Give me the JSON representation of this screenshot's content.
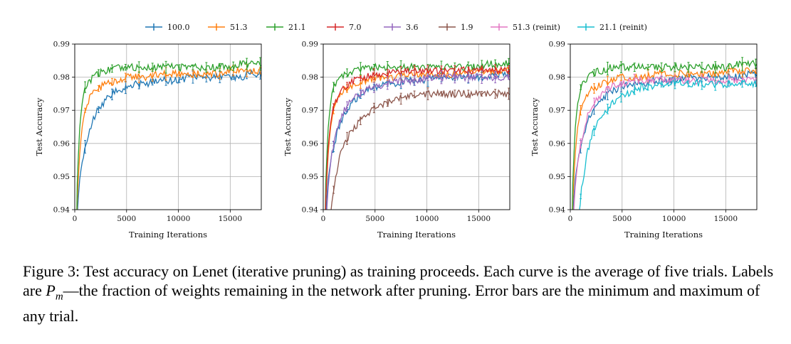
{
  "chart_data": {
    "type": "line",
    "legend": {
      "placement": "top",
      "entries": [
        {
          "label": "100.0",
          "color": "#1f77b4"
        },
        {
          "label": "51.3",
          "color": "#ff7f0e"
        },
        {
          "label": "21.1",
          "color": "#2ca02c"
        },
        {
          "label": "7.0",
          "color": "#d62728"
        },
        {
          "label": "3.6",
          "color": "#9467bd"
        },
        {
          "label": "1.9",
          "color": "#8c564b"
        },
        {
          "label": "51.3 (reinit)",
          "color": "#e377c2"
        },
        {
          "label": "21.1 (reinit)",
          "color": "#17becf"
        }
      ]
    },
    "shared": {
      "xlabel": "Training Iterations",
      "ylabel": "Test Accuracy",
      "xlim": [
        0,
        18000
      ],
      "ylim": [
        0.94,
        0.99
      ],
      "xticks": [
        0,
        5000,
        10000,
        15000
      ],
      "xtick_labels": [
        "0",
        "5000",
        "10000",
        "15000"
      ],
      "yticks": [
        0.94,
        0.95,
        0.96,
        0.97,
        0.98,
        0.99
      ],
      "ytick_labels": [
        "0.94",
        "0.95",
        "0.96",
        "0.97",
        "0.98",
        "0.99"
      ],
      "grid": true
    },
    "panels": [
      {
        "series": [
          {
            "label": "100.0",
            "color": "#1f77b4",
            "x": [
              0,
              250,
              500,
              750,
              1000,
              1500,
              2000,
              3000,
              4000,
              5000,
              6000,
              7000,
              8000,
              9000,
              10000,
              11000,
              12000,
              13000,
              14000,
              15000,
              16000,
              17000,
              18000
            ],
            "y": [
              0.9,
              0.94,
              0.95,
              0.955,
              0.959,
              0.965,
              0.969,
              0.973,
              0.976,
              0.977,
              0.978,
              0.978,
              0.979,
              0.979,
              0.979,
              0.98,
              0.98,
              0.98,
              0.98,
              0.98,
              0.98,
              0.981,
              0.981
            ]
          },
          {
            "label": "51.3",
            "color": "#ff7f0e",
            "x": [
              0,
              250,
              500,
              750,
              1000,
              1500,
              2000,
              3000,
              4000,
              5000,
              6000,
              7000,
              8000,
              9000,
              10000,
              11000,
              12000,
              13000,
              14000,
              15000,
              16000,
              17000,
              18000
            ],
            "y": [
              0.9,
              0.944,
              0.958,
              0.966,
              0.97,
              0.974,
              0.976,
              0.978,
              0.979,
              0.98,
              0.98,
              0.98,
              0.981,
              0.981,
              0.981,
              0.981,
              0.981,
              0.981,
              0.981,
              0.982,
              0.982,
              0.982,
              0.982
            ]
          },
          {
            "label": "21.1",
            "color": "#2ca02c",
            "x": [
              0,
              250,
              500,
              750,
              1000,
              1500,
              2000,
              3000,
              4000,
              5000,
              6000,
              7000,
              8000,
              9000,
              10000,
              11000,
              12000,
              13000,
              14000,
              15000,
              16000,
              17000,
              18000
            ],
            "y": [
              0.9,
              0.95,
              0.966,
              0.973,
              0.977,
              0.979,
              0.981,
              0.982,
              0.983,
              0.983,
              0.983,
              0.983,
              0.983,
              0.983,
              0.983,
              0.983,
              0.983,
              0.983,
              0.983,
              0.983,
              0.984,
              0.984,
              0.984
            ]
          }
        ]
      },
      {
        "series": [
          {
            "label": "100.0",
            "color": "#1f77b4",
            "x": [
              0,
              250,
              500,
              750,
              1000,
              1500,
              2000,
              3000,
              4000,
              5000,
              6000,
              7000,
              8000,
              9000,
              10000,
              11000,
              12000,
              13000,
              14000,
              15000,
              16000,
              17000,
              18000
            ],
            "y": [
              0.9,
              0.94,
              0.95,
              0.955,
              0.959,
              0.965,
              0.969,
              0.973,
              0.976,
              0.977,
              0.978,
              0.978,
              0.979,
              0.979,
              0.979,
              0.98,
              0.98,
              0.98,
              0.98,
              0.98,
              0.98,
              0.981,
              0.981
            ]
          },
          {
            "label": "51.3",
            "color": "#ff7f0e",
            "x": [
              0,
              250,
              500,
              750,
              1000,
              1500,
              2000,
              3000,
              4000,
              5000,
              6000,
              7000,
              8000,
              9000,
              10000,
              11000,
              12000,
              13000,
              14000,
              15000,
              16000,
              17000,
              18000
            ],
            "y": [
              0.9,
              0.944,
              0.958,
              0.966,
              0.97,
              0.974,
              0.976,
              0.978,
              0.979,
              0.98,
              0.98,
              0.98,
              0.981,
              0.981,
              0.981,
              0.981,
              0.981,
              0.981,
              0.981,
              0.982,
              0.982,
              0.982,
              0.982
            ]
          },
          {
            "label": "21.1",
            "color": "#2ca02c",
            "x": [
              0,
              250,
              500,
              750,
              1000,
              1500,
              2000,
              3000,
              4000,
              5000,
              6000,
              7000,
              8000,
              9000,
              10000,
              11000,
              12000,
              13000,
              14000,
              15000,
              16000,
              17000,
              18000
            ],
            "y": [
              0.9,
              0.95,
              0.966,
              0.973,
              0.977,
              0.979,
              0.981,
              0.982,
              0.983,
              0.983,
              0.983,
              0.983,
              0.983,
              0.983,
              0.983,
              0.983,
              0.983,
              0.983,
              0.983,
              0.983,
              0.984,
              0.984,
              0.984
            ]
          },
          {
            "label": "7.0",
            "color": "#d62728",
            "x": [
              0,
              250,
              500,
              750,
              1000,
              1500,
              2000,
              3000,
              4000,
              5000,
              6000,
              7000,
              8000,
              9000,
              10000,
              11000,
              12000,
              13000,
              14000,
              15000,
              16000,
              17000,
              18000
            ],
            "y": [
              0.9,
              0.945,
              0.96,
              0.967,
              0.971,
              0.975,
              0.977,
              0.979,
              0.98,
              0.981,
              0.981,
              0.982,
              0.982,
              0.982,
              0.982,
              0.982,
              0.982,
              0.982,
              0.982,
              0.982,
              0.982,
              0.982,
              0.982
            ]
          },
          {
            "label": "3.6",
            "color": "#9467bd",
            "x": [
              0,
              250,
              500,
              750,
              1000,
              1500,
              2000,
              3000,
              4000,
              5000,
              6000,
              7000,
              8000,
              9000,
              10000,
              11000,
              12000,
              13000,
              14000,
              15000,
              16000,
              17000,
              18000
            ],
            "y": [
              0.9,
              0.935,
              0.948,
              0.955,
              0.96,
              0.966,
              0.97,
              0.974,
              0.976,
              0.977,
              0.978,
              0.979,
              0.979,
              0.979,
              0.98,
              0.98,
              0.98,
              0.98,
              0.98,
              0.98,
              0.98,
              0.98,
              0.98
            ]
          },
          {
            "label": "1.9",
            "color": "#8c564b",
            "x": [
              0,
              250,
              500,
              750,
              1000,
              1500,
              2000,
              3000,
              4000,
              5000,
              6000,
              7000,
              8000,
              9000,
              10000,
              11000,
              12000,
              13000,
              14000,
              15000,
              16000,
              17000,
              18000
            ],
            "y": [
              0.9,
              0.91,
              0.93,
              0.94,
              0.946,
              0.955,
              0.96,
              0.965,
              0.968,
              0.971,
              0.972,
              0.973,
              0.974,
              0.975,
              0.975,
              0.975,
              0.975,
              0.975,
              0.975,
              0.975,
              0.975,
              0.975,
              0.975
            ]
          }
        ]
      },
      {
        "series": [
          {
            "label": "100.0",
            "color": "#1f77b4",
            "x": [
              0,
              250,
              500,
              750,
              1000,
              1500,
              2000,
              3000,
              4000,
              5000,
              6000,
              7000,
              8000,
              9000,
              10000,
              11000,
              12000,
              13000,
              14000,
              15000,
              16000,
              17000,
              18000
            ],
            "y": [
              0.9,
              0.94,
              0.95,
              0.955,
              0.959,
              0.965,
              0.969,
              0.973,
              0.976,
              0.977,
              0.978,
              0.978,
              0.979,
              0.979,
              0.979,
              0.98,
              0.98,
              0.98,
              0.98,
              0.98,
              0.98,
              0.981,
              0.981
            ]
          },
          {
            "label": "51.3",
            "color": "#ff7f0e",
            "x": [
              0,
              250,
              500,
              750,
              1000,
              1500,
              2000,
              3000,
              4000,
              5000,
              6000,
              7000,
              8000,
              9000,
              10000,
              11000,
              12000,
              13000,
              14000,
              15000,
              16000,
              17000,
              18000
            ],
            "y": [
              0.9,
              0.944,
              0.958,
              0.966,
              0.97,
              0.974,
              0.976,
              0.978,
              0.979,
              0.98,
              0.98,
              0.98,
              0.981,
              0.981,
              0.981,
              0.981,
              0.981,
              0.981,
              0.981,
              0.982,
              0.982,
              0.982,
              0.982
            ]
          },
          {
            "label": "21.1",
            "color": "#2ca02c",
            "x": [
              0,
              250,
              500,
              750,
              1000,
              1500,
              2000,
              3000,
              4000,
              5000,
              6000,
              7000,
              8000,
              9000,
              10000,
              11000,
              12000,
              13000,
              14000,
              15000,
              16000,
              17000,
              18000
            ],
            "y": [
              0.9,
              0.95,
              0.966,
              0.973,
              0.977,
              0.979,
              0.981,
              0.982,
              0.983,
              0.983,
              0.983,
              0.983,
              0.983,
              0.983,
              0.983,
              0.983,
              0.983,
              0.983,
              0.983,
              0.983,
              0.984,
              0.984,
              0.984
            ]
          },
          {
            "label": "51.3 (reinit)",
            "color": "#e377c2",
            "x": [
              0,
              250,
              500,
              750,
              1000,
              1500,
              2000,
              3000,
              4000,
              5000,
              6000,
              7000,
              8000,
              9000,
              10000,
              11000,
              12000,
              13000,
              14000,
              15000,
              16000,
              17000,
              18000
            ],
            "y": [
              0.9,
              0.935,
              0.948,
              0.955,
              0.96,
              0.967,
              0.971,
              0.975,
              0.977,
              0.978,
              0.979,
              0.979,
              0.979,
              0.979,
              0.979,
              0.979,
              0.979,
              0.979,
              0.979,
              0.979,
              0.979,
              0.979,
              0.979
            ]
          },
          {
            "label": "21.1 (reinit)",
            "color": "#17becf",
            "x": [
              0,
              250,
              500,
              750,
              1000,
              1500,
              2000,
              3000,
              4000,
              5000,
              6000,
              7000,
              8000,
              9000,
              10000,
              11000,
              12000,
              13000,
              14000,
              15000,
              16000,
              17000,
              18000
            ],
            "y": [
              0.9,
              0.9,
              0.92,
              0.935,
              0.944,
              0.955,
              0.962,
              0.968,
              0.972,
              0.974,
              0.976,
              0.977,
              0.977,
              0.978,
              0.978,
              0.978,
              0.978,
              0.978,
              0.978,
              0.978,
              0.978,
              0.978,
              0.978
            ]
          }
        ]
      }
    ]
  },
  "caption": {
    "prefix": "Figure 3: Test accuracy on Lenet (iterative pruning) as training proceeds. Each curve is the average of five trials. Labels are ",
    "math_var": "P",
    "math_sub": "m",
    "suffix": "—the fraction of weights remaining in the network after pruning. Error bars are the minimum and maximum of any trial."
  }
}
